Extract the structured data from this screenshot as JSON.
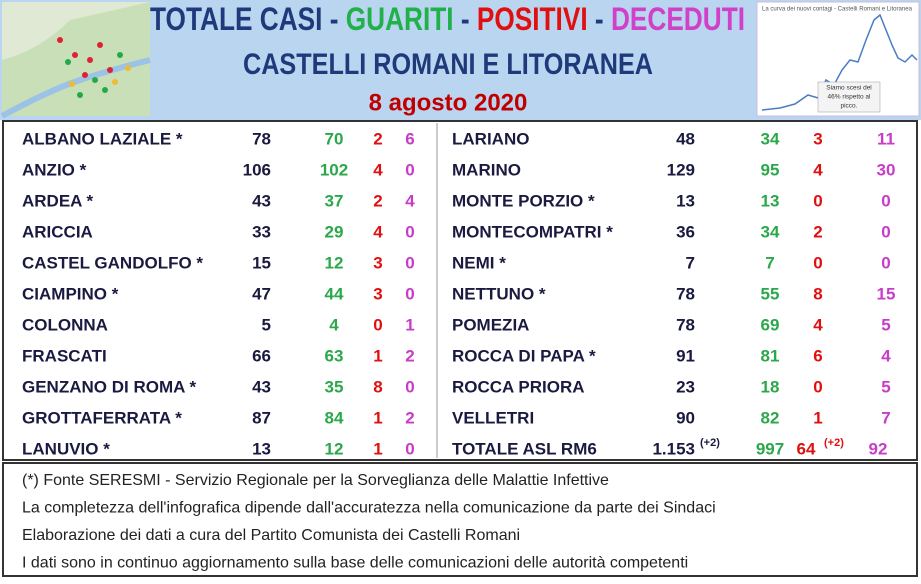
{
  "header": {
    "title": [
      "TOTALE CASI",
      " - ",
      "GUARITI",
      " - ",
      "POSITIVI",
      " - ",
      "DECEDUTI"
    ],
    "subtitle": "CASTELLI ROMANI E LITORANEA",
    "date": "8 agosto 2020",
    "chart_title": "La curva dei nuovi contagi - Castelli Romani e Litoranea",
    "chart_note": [
      "Siamo scesi del",
      "46% rispetto al",
      "picco."
    ]
  },
  "table": {
    "left": [
      [
        "ALBANO LAZIALE *",
        "78",
        "70",
        "2",
        "6"
      ],
      [
        "ANZIO *",
        "106",
        "102",
        "4",
        "0"
      ],
      [
        "ARDEA *",
        "43",
        "37",
        "2",
        "4"
      ],
      [
        "ARICCIA",
        "33",
        "29",
        "4",
        "0"
      ],
      [
        "CASTEL GANDOLFO *",
        "15",
        "12",
        "3",
        "0"
      ],
      [
        "CIAMPINO *",
        "47",
        "44",
        "3",
        "0"
      ],
      [
        "COLONNA",
        "5",
        "4",
        "0",
        "1"
      ],
      [
        "FRASCATI",
        "66",
        "63",
        "1",
        "2"
      ],
      [
        "GENZANO DI ROMA *",
        "43",
        "35",
        "8",
        "0"
      ],
      [
        "GROTTAFERRATA *",
        "87",
        "84",
        "1",
        "2"
      ],
      [
        "LANUVIO *",
        "13",
        "12",
        "1",
        "0"
      ]
    ],
    "right": [
      [
        "LARIANO",
        "48",
        "34",
        "3",
        "11"
      ],
      [
        "MARINO",
        "129",
        "95",
        "4",
        "30"
      ],
      [
        "MONTE PORZIO *",
        "13",
        "13",
        "0",
        "0"
      ],
      [
        "MONTECOMPATRI *",
        "36",
        "34",
        "2",
        "0"
      ],
      [
        "NEMI *",
        "7",
        "7",
        "0",
        "0"
      ],
      [
        "NETTUNO *",
        "78",
        "55",
        "8",
        "15"
      ],
      [
        "POMEZIA",
        "78",
        "69",
        "4",
        "5"
      ],
      [
        "ROCCA DI PAPA *",
        "91",
        "81",
        "6",
        "4"
      ],
      [
        "ROCCA PRIORA",
        "23",
        "18",
        "0",
        "5"
      ],
      [
        "VELLETRI",
        "90",
        "82",
        "1",
        "7"
      ]
    ],
    "total": {
      "name": "TOTALE ASL RM6",
      "total": "1.153",
      "total_note": "(+2)",
      "guariti": "997",
      "positivi": "64",
      "positivi_note": "(+2)",
      "deceduti": "92"
    }
  },
  "footer": [
    "(*) Fonte SERESMI - Servizio Regionale per la Sorveglianza delle Malattie Infettive",
    "La completezza dell'infografica dipende dall'accuratezza nella comunicazione da parte dei Sindaci",
    "Elaborazione dei dati a cura del Partito Comunista dei Castelli Romani",
    "I dati sono in continuo aggiornamento sulla base delle comunicazioni delle autorità competenti"
  ]
}
